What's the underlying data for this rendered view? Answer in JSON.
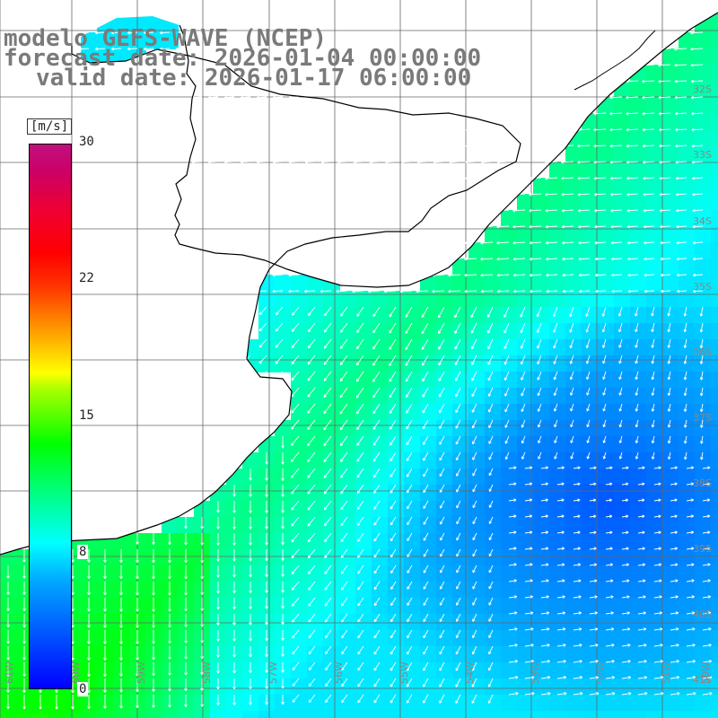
{
  "title": {
    "line1": "modelo GEFS-WAVE (NCEP)",
    "line2": "forecast date: 2026-01-04 00:00:00",
    "line3": "valid date: 2026-01-17 06:00:00"
  },
  "colorbar": {
    "unit": "[m/s]",
    "ticks": [
      {
        "label": "30",
        "value": 30
      },
      {
        "label": "22",
        "value": 22
      },
      {
        "label": "15",
        "value": 15
      },
      {
        "label": "8",
        "value": 8
      },
      {
        "label": "0",
        "value": 0
      }
    ],
    "min": 0,
    "max": 30
  },
  "map": {
    "lat_labels": [
      "32S",
      "33S",
      "34S",
      "35S",
      "36S",
      "37S",
      "38S",
      "39S",
      "40S",
      "41S"
    ],
    "lon_labels": [
      "61W",
      "60W",
      "59W",
      "58W",
      "57W",
      "56W",
      "55W",
      "54W",
      "53W",
      "52W",
      "51W",
      "50W"
    ],
    "colors": {
      "land": "#ffffff",
      "coast": "#000000",
      "grid": "#666666",
      "arrow": "#ffffff"
    }
  }
}
